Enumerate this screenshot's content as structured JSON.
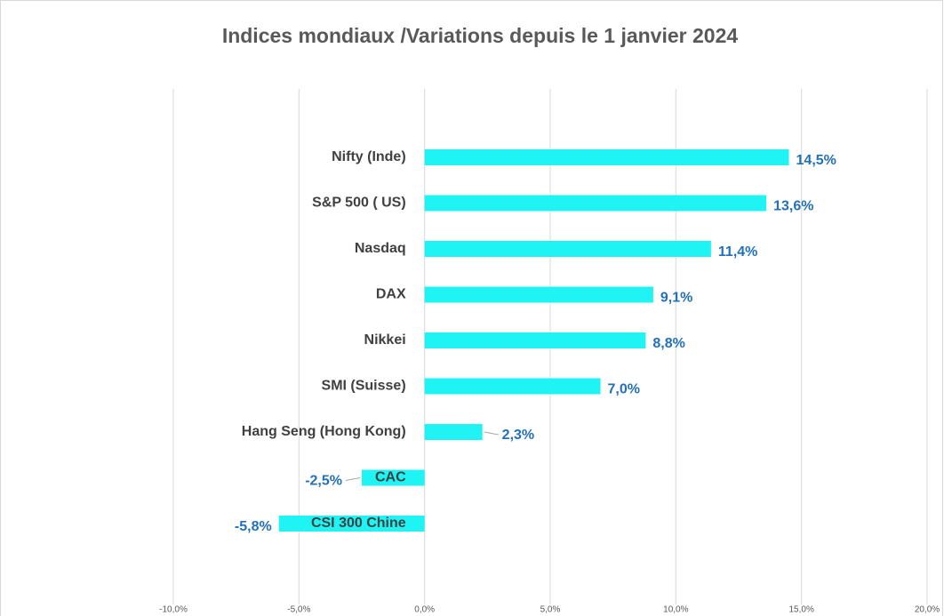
{
  "chart_data": {
    "type": "bar",
    "orientation": "horizontal",
    "title": "Indices mondiaux /Variations depuis le 1 janvier 2024",
    "categories": [
      "Nifty (Inde)",
      "S&P 500 ( US)",
      "Nasdaq",
      "DAX",
      "Nikkei",
      "SMI (Suisse)",
      "Hang Seng (Hong Kong)",
      "CAC",
      "CSI 300 Chine"
    ],
    "values": [
      14.5,
      13.6,
      11.4,
      9.1,
      8.8,
      7.0,
      2.3,
      -2.5,
      -5.8
    ],
    "value_labels": [
      "14,5%",
      "13,6%",
      "11,4%",
      "9,1%",
      "8,8%",
      "7,0%",
      "2,3%",
      "-2,5%",
      "-5,8%"
    ],
    "color": "#1ff3f3",
    "xlim": [
      -10,
      20
    ],
    "xticks": [
      {
        "value": -10,
        "label": "-10,0%"
      },
      {
        "value": -5,
        "label": "-5,0%"
      },
      {
        "value": 0,
        "label": "0,0%"
      },
      {
        "value": 5,
        "label": "5,0%"
      },
      {
        "value": 10,
        "label": "10,0%"
      },
      {
        "value": 15,
        "label": "15,0%"
      },
      {
        "value": 20,
        "label": "20,0%"
      }
    ],
    "grid": true
  }
}
